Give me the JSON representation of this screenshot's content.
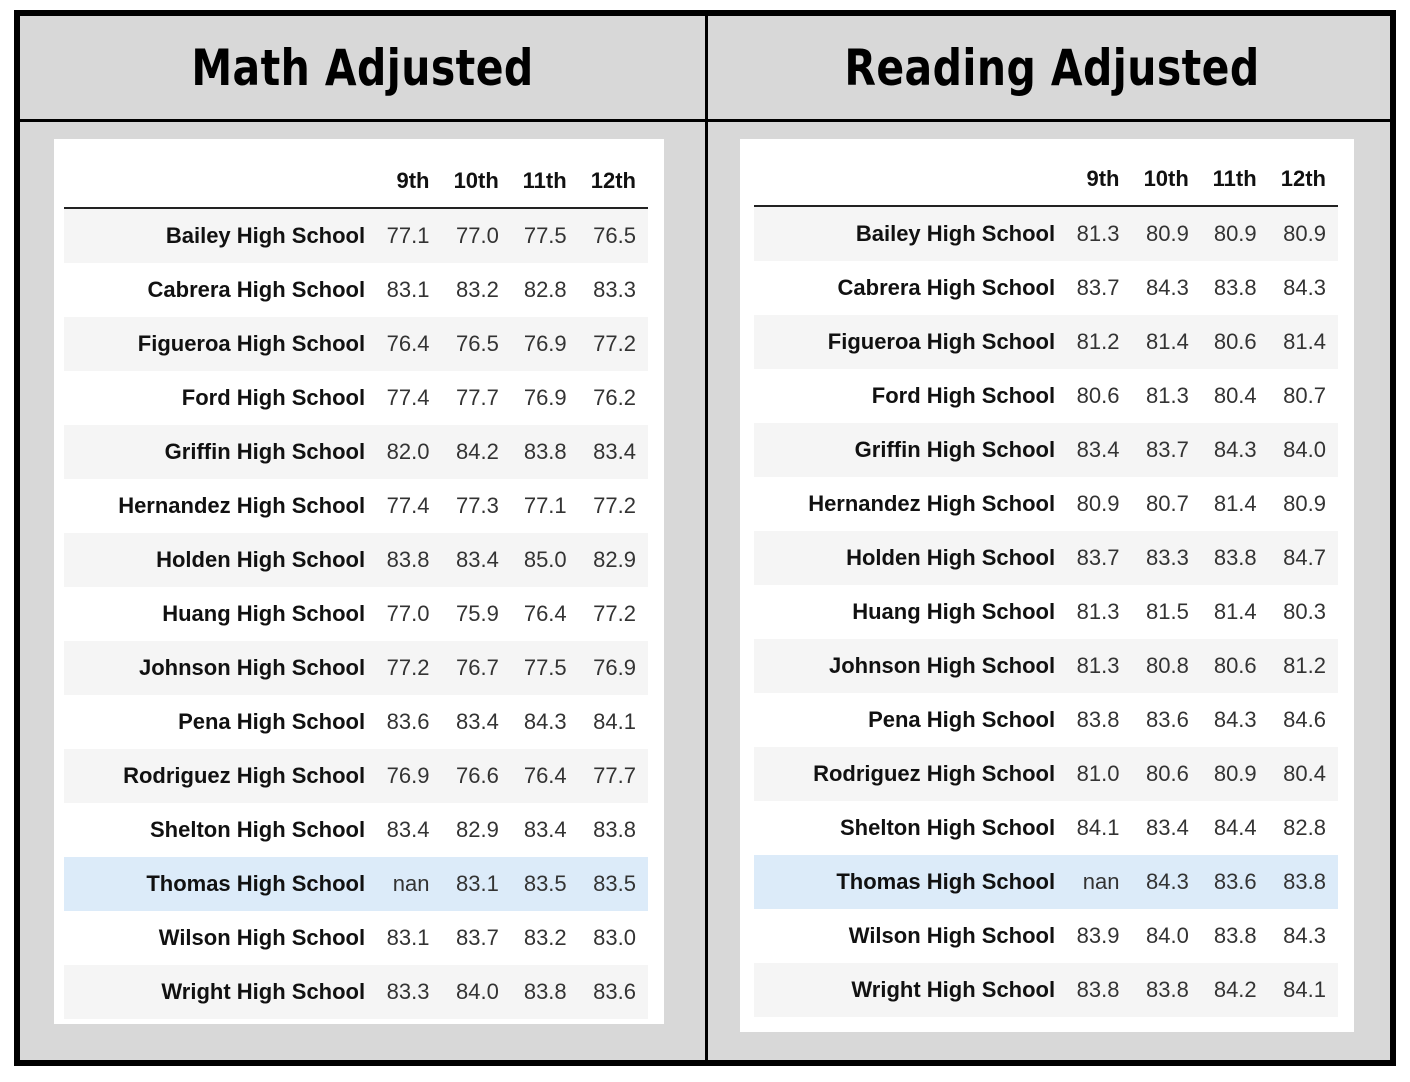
{
  "panels": [
    {
      "title": "Math Adjusted",
      "columns": [
        "9th",
        "10th",
        "11th",
        "12th"
      ],
      "rows": [
        {
          "school": "Bailey High School",
          "values": [
            "77.1",
            "77.0",
            "77.5",
            "76.5"
          ]
        },
        {
          "school": "Cabrera High School",
          "values": [
            "83.1",
            "83.2",
            "82.8",
            "83.3"
          ]
        },
        {
          "school": "Figueroa High School",
          "values": [
            "76.4",
            "76.5",
            "76.9",
            "77.2"
          ]
        },
        {
          "school": "Ford High School",
          "values": [
            "77.4",
            "77.7",
            "76.9",
            "76.2"
          ]
        },
        {
          "school": "Griffin High School",
          "values": [
            "82.0",
            "84.2",
            "83.8",
            "83.4"
          ]
        },
        {
          "school": "Hernandez High School",
          "values": [
            "77.4",
            "77.3",
            "77.1",
            "77.2"
          ]
        },
        {
          "school": "Holden High School",
          "values": [
            "83.8",
            "83.4",
            "85.0",
            "82.9"
          ]
        },
        {
          "school": "Huang High School",
          "values": [
            "77.0",
            "75.9",
            "76.4",
            "77.2"
          ]
        },
        {
          "school": "Johnson High School",
          "values": [
            "77.2",
            "76.7",
            "77.5",
            "76.9"
          ]
        },
        {
          "school": "Pena High School",
          "values": [
            "83.6",
            "83.4",
            "84.3",
            "84.1"
          ]
        },
        {
          "school": "Rodriguez High School",
          "values": [
            "76.9",
            "76.6",
            "76.4",
            "77.7"
          ]
        },
        {
          "school": "Shelton High School",
          "values": [
            "83.4",
            "82.9",
            "83.4",
            "83.8"
          ]
        },
        {
          "school": "Thomas High School",
          "values": [
            "nan",
            "83.1",
            "83.5",
            "83.5"
          ]
        },
        {
          "school": "Wilson High School",
          "values": [
            "83.1",
            "83.7",
            "83.2",
            "83.0"
          ]
        },
        {
          "school": "Wright High School",
          "values": [
            "83.3",
            "84.0",
            "83.8",
            "83.6"
          ]
        }
      ]
    },
    {
      "title": "Reading Adjusted",
      "columns": [
        "9th",
        "10th",
        "11th",
        "12th"
      ],
      "rows": [
        {
          "school": "Bailey High School",
          "values": [
            "81.3",
            "80.9",
            "80.9",
            "80.9"
          ]
        },
        {
          "school": "Cabrera High School",
          "values": [
            "83.7",
            "84.3",
            "83.8",
            "84.3"
          ]
        },
        {
          "school": "Figueroa High School",
          "values": [
            "81.2",
            "81.4",
            "80.6",
            "81.4"
          ]
        },
        {
          "school": "Ford High School",
          "values": [
            "80.6",
            "81.3",
            "80.4",
            "80.7"
          ]
        },
        {
          "school": "Griffin High School",
          "values": [
            "83.4",
            "83.7",
            "84.3",
            "84.0"
          ]
        },
        {
          "school": "Hernandez High School",
          "values": [
            "80.9",
            "80.7",
            "81.4",
            "80.9"
          ]
        },
        {
          "school": "Holden High School",
          "values": [
            "83.7",
            "83.3",
            "83.8",
            "84.7"
          ]
        },
        {
          "school": "Huang High School",
          "values": [
            "81.3",
            "81.5",
            "81.4",
            "80.3"
          ]
        },
        {
          "school": "Johnson High School",
          "values": [
            "81.3",
            "80.8",
            "80.6",
            "81.2"
          ]
        },
        {
          "school": "Pena High School",
          "values": [
            "83.8",
            "83.6",
            "84.3",
            "84.6"
          ]
        },
        {
          "school": "Rodriguez High School",
          "values": [
            "81.0",
            "80.6",
            "80.9",
            "80.4"
          ]
        },
        {
          "school": "Shelton High School",
          "values": [
            "84.1",
            "83.4",
            "84.4",
            "82.8"
          ]
        },
        {
          "school": "Thomas High School",
          "values": [
            "nan",
            "84.3",
            "83.6",
            "83.8"
          ]
        },
        {
          "school": "Wilson High School",
          "values": [
            "83.9",
            "84.0",
            "83.8",
            "84.3"
          ]
        },
        {
          "school": "Wright High School",
          "values": [
            "83.8",
            "83.8",
            "84.2",
            "84.1"
          ]
        }
      ]
    }
  ],
  "colors": {
    "frame_bg": "#d8d8d8",
    "border": "#000000",
    "row_stripe": "#f5f5f5",
    "row_highlight": "#dcebf9"
  }
}
